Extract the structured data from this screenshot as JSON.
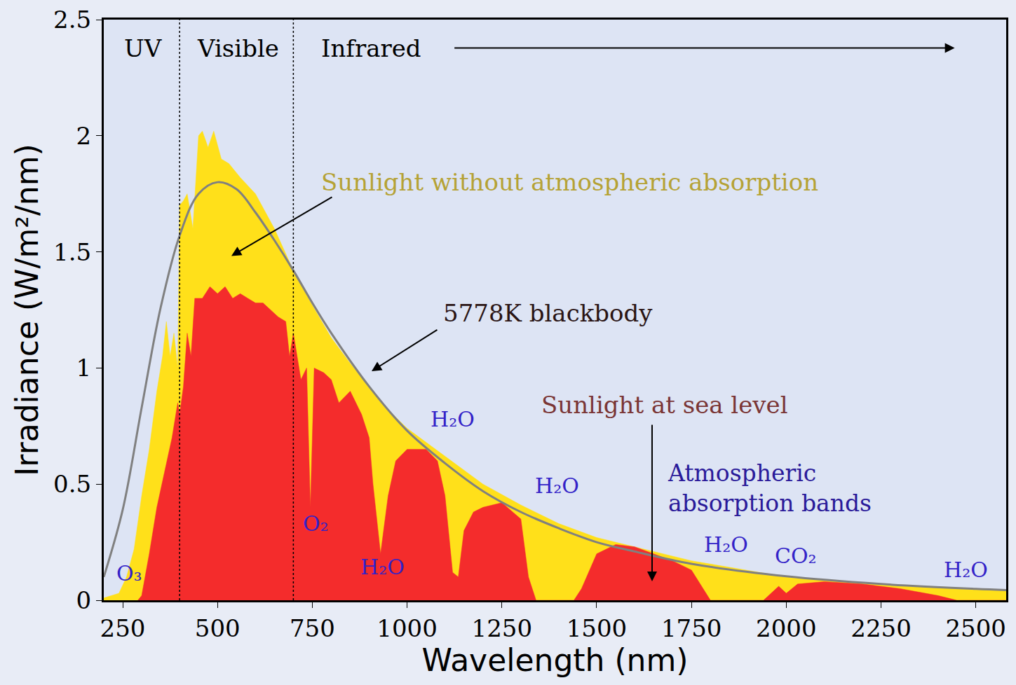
{
  "chart_data": {
    "type": "area",
    "x_label": "Wavelength (nm)",
    "y_label": "Irradiance (W/m²/nm)",
    "xlim": [
      200,
      2580
    ],
    "xticks": [
      250,
      500,
      750,
      1000,
      1250,
      1500,
      1750,
      2000,
      2250,
      2500
    ],
    "ylim": [
      0,
      2.5
    ],
    "yticks": [
      0,
      0.5,
      1,
      1.5,
      2,
      2.5
    ],
    "grid": false,
    "regions": {
      "labels": [
        "UV",
        "Visible",
        "Infrared"
      ],
      "boundaries": [
        400,
        700
      ]
    },
    "annotations": [
      "Atmospheric absorption bands",
      "O₃",
      "O₂",
      "H₂O",
      "H₂O",
      "H₂O",
      "H₂O",
      "CO₂",
      "H₂O"
    ],
    "series": [
      {
        "name": "Sunlight without atmospheric absorption",
        "type": "area",
        "color": "#ffe01a",
        "x": [
          200,
          240,
          260,
          280,
          300,
          320,
          340,
          355,
          365,
          375,
          385,
          395,
          400,
          410,
          420,
          435,
          450,
          460,
          475,
          490,
          510,
          530,
          560,
          600,
          650,
          700,
          750,
          800,
          850,
          900,
          950,
          1000,
          1100,
          1200,
          1300,
          1400,
          1500,
          1600,
          1750,
          2000,
          2250,
          2500,
          2580
        ],
        "values": [
          0.01,
          0.03,
          0.1,
          0.22,
          0.45,
          0.65,
          0.9,
          1.05,
          1.2,
          1.05,
          1.15,
          1.0,
          1.7,
          1.72,
          1.75,
          1.6,
          2.0,
          2.02,
          1.95,
          2.02,
          1.9,
          1.88,
          1.82,
          1.75,
          1.6,
          1.42,
          1.27,
          1.13,
          1.02,
          0.92,
          0.82,
          0.74,
          0.62,
          0.5,
          0.41,
          0.33,
          0.27,
          0.23,
          0.17,
          0.1,
          0.07,
          0.05,
          0.045
        ]
      },
      {
        "name": "Sunlight at sea level",
        "type": "area",
        "color": "#f42c2c",
        "x": [
          290,
          300,
          320,
          340,
          360,
          380,
          395,
          400,
          410,
          420,
          430,
          440,
          460,
          480,
          500,
          520,
          540,
          560,
          580,
          600,
          620,
          640,
          660,
          680,
          690,
          700,
          720,
          735,
          745,
          755,
          780,
          800,
          820,
          850,
          880,
          900,
          910,
          930,
          950,
          970,
          1000,
          1050,
          1080,
          1100,
          1120,
          1135,
          1150,
          1175,
          1200,
          1250,
          1300,
          1320,
          1340,
          1440,
          1460,
          1500,
          1550,
          1600,
          1650,
          1700,
          1750,
          1780,
          1800,
          1940,
          1960,
          1980,
          2000,
          2030,
          2100,
          2200,
          2300,
          2400,
          2450,
          2580
        ],
        "values": [
          0,
          0.02,
          0.2,
          0.4,
          0.55,
          0.7,
          0.85,
          0.8,
          0.92,
          1.15,
          1.05,
          1.3,
          1.3,
          1.35,
          1.32,
          1.35,
          1.3,
          1.32,
          1.3,
          1.28,
          1.28,
          1.25,
          1.22,
          1.2,
          1.05,
          1.15,
          0.95,
          1.0,
          0.4,
          1.0,
          0.98,
          0.95,
          0.85,
          0.9,
          0.8,
          0.7,
          0.5,
          0.2,
          0.45,
          0.6,
          0.65,
          0.65,
          0.6,
          0.45,
          0.12,
          0.1,
          0.3,
          0.38,
          0.4,
          0.42,
          0.35,
          0.1,
          0,
          0,
          0.05,
          0.2,
          0.24,
          0.23,
          0.2,
          0.17,
          0.13,
          0.05,
          0,
          0,
          0.03,
          0.06,
          0.03,
          0.07,
          0.08,
          0.07,
          0.05,
          0.02,
          0,
          0
        ]
      },
      {
        "name": "5778K blackbody",
        "type": "line",
        "color": "#808080",
        "x": [
          200,
          250,
          300,
          350,
          400,
          450,
          500,
          550,
          600,
          650,
          700,
          750,
          800,
          900,
          1000,
          1100,
          1200,
          1300,
          1400,
          1500,
          1600,
          1750,
          2000,
          2250,
          2500,
          2580
        ],
        "values": [
          0.1,
          0.39,
          0.83,
          1.26,
          1.57,
          1.75,
          1.8,
          1.77,
          1.67,
          1.55,
          1.42,
          1.28,
          1.15,
          0.92,
          0.73,
          0.59,
          0.47,
          0.38,
          0.31,
          0.25,
          0.21,
          0.157,
          0.103,
          0.07,
          0.049,
          0.044
        ]
      }
    ]
  }
}
